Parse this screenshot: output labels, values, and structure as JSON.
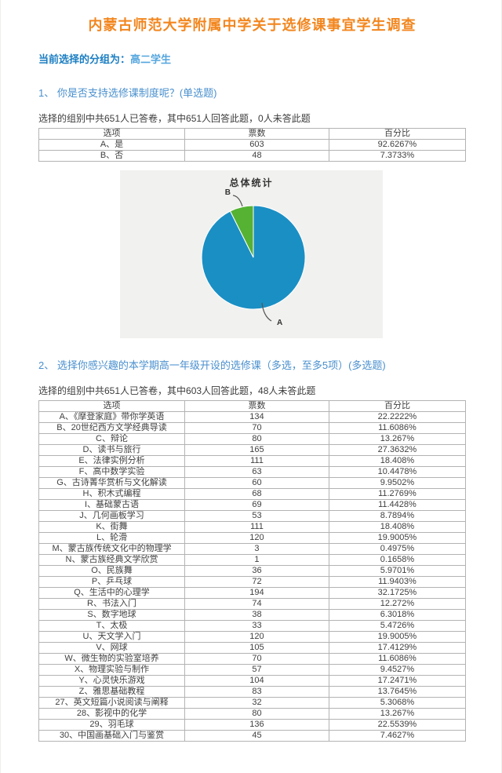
{
  "page": {
    "title": "内蒙古师范大学附属中学关于选修课事宜学生调查",
    "group_label": "当前选择的分组为：",
    "group_value": "高二学生"
  },
  "questions": [
    {
      "heading": "1、 你是否支持选修课制度呢？(单选题)",
      "stats": "选择的组别中共651人已答卷，其中651人回答此题，0人未答此题",
      "columns": [
        "选项",
        "票数",
        "百分比"
      ],
      "rows": [
        [
          "A、是",
          "603",
          "92.6267%"
        ],
        [
          "B、否",
          "48",
          "7.3733%"
        ]
      ]
    },
    {
      "heading": "2、 选择你感兴趣的本学期高一年级开设的选修课（多选，至多5项）(多选题)",
      "stats": "选择的组别中共651人已答卷，其中603人回答此题，48人未答此题",
      "columns": [
        "选项",
        "票数",
        "百分比"
      ],
      "rows": [
        [
          "A、《摩登家庭》带你学英语",
          "134",
          "22.2222%"
        ],
        [
          "B、20世纪西方文学经典导读",
          "70",
          "11.6086%"
        ],
        [
          "C、辩论",
          "80",
          "13.267%"
        ],
        [
          "D、读书与旅行",
          "165",
          "27.3632%"
        ],
        [
          "E、法律实例分析",
          "111",
          "18.408%"
        ],
        [
          "F、高中数学实验",
          "63",
          "10.4478%"
        ],
        [
          "G、古诗菁华赏析与文化解读",
          "60",
          "9.9502%"
        ],
        [
          "H、积木式编程",
          "68",
          "11.2769%"
        ],
        [
          "I、基础蒙古语",
          "69",
          "11.4428%"
        ],
        [
          "J、几何画板学习",
          "53",
          "8.7894%"
        ],
        [
          "K、街舞",
          "111",
          "18.408%"
        ],
        [
          "L、轮滑",
          "120",
          "19.9005%"
        ],
        [
          "M、蒙古族传统文化中的物理学",
          "3",
          "0.4975%"
        ],
        [
          "N、蒙古族经典文学欣赏",
          "1",
          "0.1658%"
        ],
        [
          "O、民族舞",
          "36",
          "5.9701%"
        ],
        [
          "P、乒乓球",
          "72",
          "11.9403%"
        ],
        [
          "Q、生活中的心理学",
          "194",
          "32.1725%"
        ],
        [
          "R、书法入门",
          "74",
          "12.272%"
        ],
        [
          "S、数字地球",
          "38",
          "6.3018%"
        ],
        [
          "T、太极",
          "33",
          "5.4726%"
        ],
        [
          "U、天文学入门",
          "120",
          "19.9005%"
        ],
        [
          "V、网球",
          "105",
          "17.4129%"
        ],
        [
          "W、微生物的实验室培养",
          "70",
          "11.6086%"
        ],
        [
          "X、物理实验与制作",
          "57",
          "9.4527%"
        ],
        [
          "Y、心灵快乐游戏",
          "104",
          "17.2471%"
        ],
        [
          "Z、雅思基础教程",
          "83",
          "13.7645%"
        ],
        [
          "27、英文短篇小说阅读与阐释",
          "32",
          "5.3068%"
        ],
        [
          "28、影视中的化学",
          "80",
          "13.267%"
        ],
        [
          "29、羽毛球",
          "136",
          "22.5539%"
        ],
        [
          "30、中国画基础入门与鉴赏",
          "45",
          "7.4627%"
        ]
      ]
    }
  ],
  "chart_data": {
    "type": "pie",
    "title": "总体统计",
    "labels": [
      "A",
      "B"
    ],
    "values": [
      603,
      48
    ],
    "percentages": [
      92.6267,
      7.3733
    ],
    "colors": [
      "#1a8fc4",
      "#55b233"
    ],
    "background": "#f1f1ef",
    "legend_position": "callout-labels"
  }
}
